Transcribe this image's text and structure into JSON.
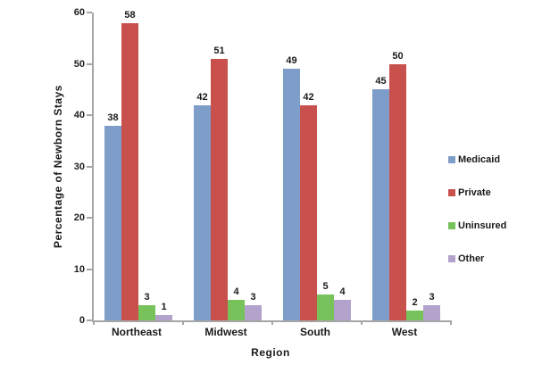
{
  "chart_data": {
    "type": "bar",
    "categories": [
      "Northeast",
      "Midwest",
      "South",
      "West"
    ],
    "series": [
      {
        "name": "Medicaid",
        "color": "#7E9DC8",
        "values": [
          38,
          42,
          49,
          45
        ]
      },
      {
        "name": "Private",
        "color": "#C9514D",
        "values": [
          58,
          51,
          42,
          50
        ]
      },
      {
        "name": "Uninsured",
        "color": "#77C25A",
        "values": [
          3,
          4,
          5,
          2
        ]
      },
      {
        "name": "Other",
        "color": "#B3A2CB",
        "values": [
          1,
          3,
          4,
          3
        ]
      }
    ],
    "title": "",
    "xlabel": "Region",
    "ylabel": "Percentage of Newborn Stays",
    "ylim": [
      0,
      60
    ],
    "yticks": [
      0,
      10,
      20,
      30,
      40,
      50,
      60
    ],
    "data_labels": true,
    "legend_position": "right",
    "grid": false,
    "axis_color": "#A6A6A6",
    "text_color": "#1A1A1A"
  }
}
